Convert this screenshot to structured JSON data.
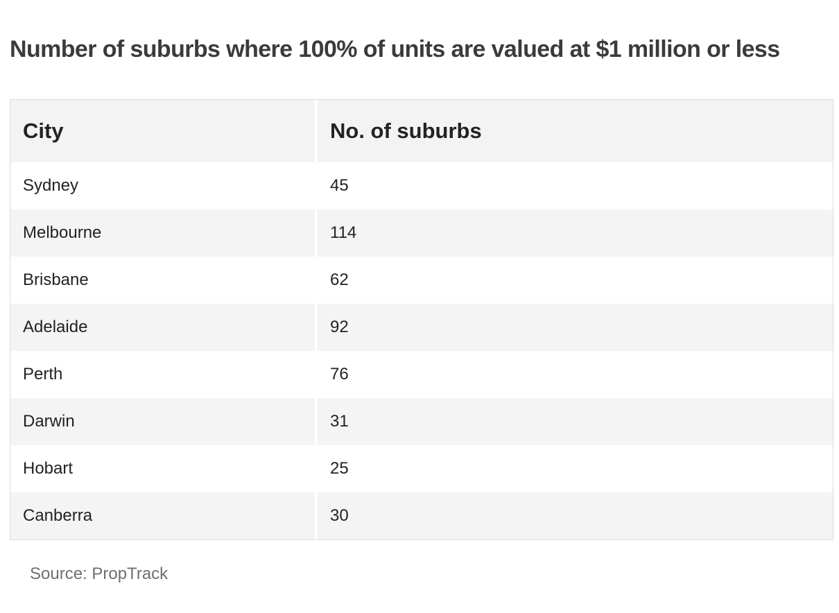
{
  "title": "Number of suburbs where 100% of units are valued at $1 million or less",
  "table": {
    "headers": [
      "City",
      "No. of suburbs"
    ],
    "rows": [
      {
        "city": "Sydney",
        "count": "45"
      },
      {
        "city": "Melbourne",
        "count": "114"
      },
      {
        "city": "Brisbane",
        "count": "62"
      },
      {
        "city": "Adelaide",
        "count": "92"
      },
      {
        "city": "Perth",
        "count": "76"
      },
      {
        "city": "Darwin",
        "count": "31"
      },
      {
        "city": "Hobart",
        "count": "25"
      },
      {
        "city": "Canberra",
        "count": "30"
      }
    ]
  },
  "source": "Source: PropTrack"
}
